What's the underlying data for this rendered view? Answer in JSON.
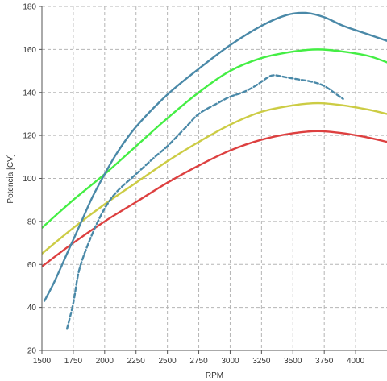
{
  "chart_data": {
    "type": "line",
    "title": "",
    "xlabel": "RPM",
    "ylabel": "Potencia [CV]",
    "xlim": [
      1500,
      4250
    ],
    "ylim": [
      20,
      180
    ],
    "xticks": [
      1500,
      1750,
      2000,
      2250,
      2500,
      2750,
      3000,
      3250,
      3500,
      3750,
      4000
    ],
    "yticks": [
      20,
      40,
      60,
      80,
      100,
      120,
      140,
      160,
      180
    ],
    "grid": true,
    "legend": "none",
    "series": [
      {
        "color": "#dd4040",
        "dash": "solid",
        "x": [
          1500,
          1750,
          2000,
          2250,
          2500,
          2750,
          3000,
          3250,
          3500,
          3700,
          3900,
          4100,
          4250
        ],
        "y": [
          59,
          70,
          80,
          89,
          98,
          106,
          113,
          118,
          121,
          122,
          121,
          119,
          117
        ]
      },
      {
        "color": "#cccc44",
        "dash": "solid",
        "x": [
          1500,
          1750,
          2000,
          2250,
          2500,
          2750,
          3000,
          3250,
          3500,
          3700,
          3900,
          4100,
          4250
        ],
        "y": [
          65,
          77,
          88,
          98,
          108,
          117,
          125,
          131,
          134,
          135,
          134,
          132,
          130
        ]
      },
      {
        "color": "#44ee44",
        "dash": "solid",
        "x": [
          1500,
          1750,
          2000,
          2250,
          2500,
          2750,
          3000,
          3250,
          3500,
          3700,
          3900,
          4100,
          4250
        ],
        "y": [
          77,
          90,
          102,
          115,
          128,
          140,
          150,
          156,
          159,
          160,
          159,
          157,
          154
        ]
      },
      {
        "color": "#4a89a8",
        "dash": "solid",
        "x": [
          1520,
          1600,
          1700,
          1800,
          1900,
          2000,
          2100,
          2250,
          2500,
          2750,
          3000,
          3250,
          3450,
          3600,
          3750,
          3900,
          4100,
          4250
        ],
        "y": [
          43,
          52,
          65,
          78,
          91,
          102,
          112,
          124,
          139,
          151,
          162,
          171,
          176,
          177,
          175,
          171,
          167,
          164
        ]
      },
      {
        "color": "#4a89a8",
        "dash": "dashed",
        "x": [
          1700,
          1750,
          1800,
          1900,
          2000,
          2100,
          2250,
          2400,
          2500,
          2650,
          2750,
          2900,
          3000,
          3100,
          3200,
          3300,
          3350,
          3450,
          3550,
          3650,
          3750,
          3850,
          3900
        ],
        "y": [
          30,
          42,
          58,
          74,
          86,
          94,
          102,
          110,
          115,
          124,
          130,
          135,
          138,
          140,
          143,
          147,
          148,
          147,
          146,
          145,
          143,
          139,
          137
        ]
      }
    ]
  }
}
